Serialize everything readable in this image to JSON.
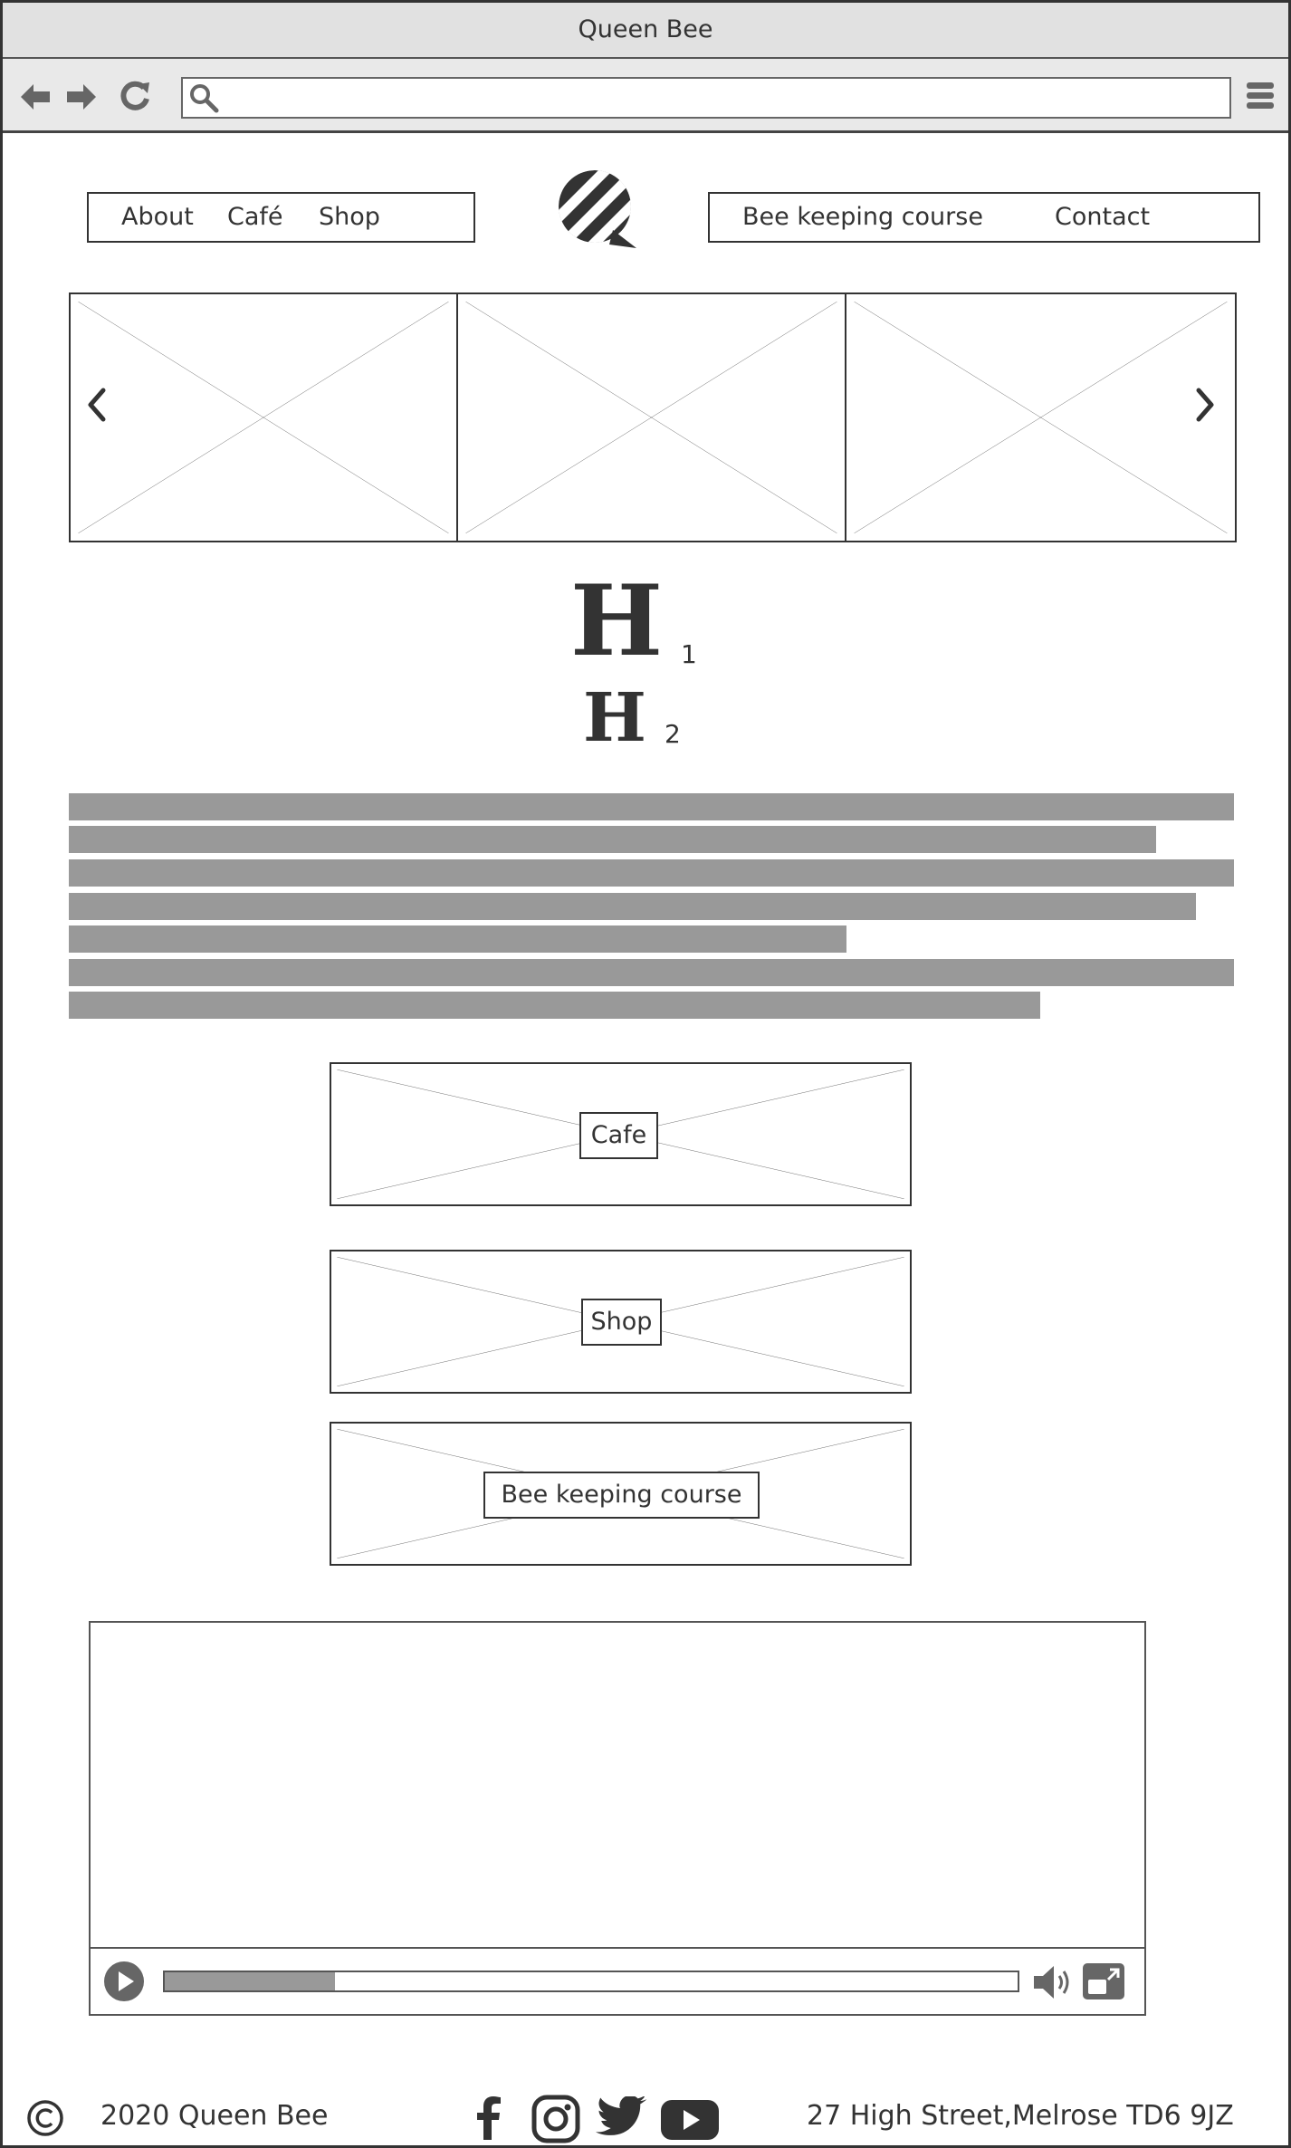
{
  "window": {
    "title": "Queen Bee"
  },
  "toolbar": {
    "back_icon": "arrow-left-icon",
    "forward_icon": "arrow-right-icon",
    "refresh_icon": "refresh-icon",
    "search_icon": "search-icon",
    "menu_icon": "hamburger-menu-icon",
    "address_value": ""
  },
  "nav": {
    "left": [
      "About",
      "Café",
      "Shop"
    ],
    "right": [
      "Bee keeping course",
      "Contact"
    ],
    "logo": "bee-logo-icon"
  },
  "carousel": {
    "prev_icon": "chevron-left-icon",
    "next_icon": "chevron-right-icon",
    "slides": 3
  },
  "headings": {
    "h1": "H",
    "h1_sub": "1",
    "h2": "H",
    "h2_sub": "2"
  },
  "body_text": {
    "lines": 7
  },
  "cards": [
    {
      "label": "Cafe"
    },
    {
      "label": "Shop"
    },
    {
      "label": "Bee keeping course"
    }
  ],
  "video": {
    "progress": 0.2,
    "play_icon": "play-icon",
    "volume_icon": "volume-icon",
    "fullscreen_icon": "fullscreen-icon"
  },
  "footer": {
    "copyright_icon": "copyright-icon",
    "copyright_text": "2020 Queen Bee",
    "social": [
      "facebook-icon",
      "instagram-icon",
      "twitter-icon",
      "youtube-icon"
    ],
    "address": "27 High Street,Melrose  TD6 9JZ"
  },
  "colors": {
    "ink": "#333333",
    "chrome": "#e1e1e1",
    "placeholder": "#999999"
  }
}
